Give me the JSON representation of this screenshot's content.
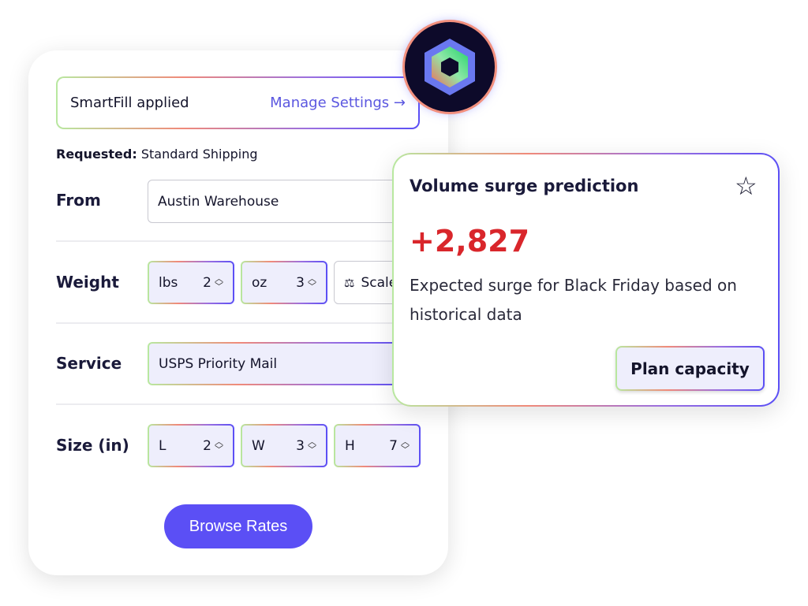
{
  "banner": {
    "status": "SmartFill applied",
    "link": "Manage Settings →"
  },
  "requested": {
    "label": "Requested:",
    "value": "Standard Shipping"
  },
  "form": {
    "from": {
      "label": "From",
      "value": "Austin Warehouse"
    },
    "weight": {
      "label": "Weight",
      "lbs": {
        "unit": "lbs",
        "value": "2"
      },
      "oz": {
        "unit": "oz",
        "value": "3"
      },
      "scale": "Scale"
    },
    "service": {
      "label": "Service",
      "value": "USPS Priority Mail"
    },
    "size": {
      "label": "Size (in)",
      "l": {
        "unit": "L",
        "value": "2"
      },
      "w": {
        "unit": "W",
        "value": "3"
      },
      "h": {
        "unit": "H",
        "value": "7"
      }
    }
  },
  "browse_button": "Browse Rates",
  "popup": {
    "title": "Volume surge prediction",
    "value": "+2,827",
    "description": "Expected surge for Black Friday based on historical data",
    "button": "Plan capacity"
  },
  "colors": {
    "accent": "#5b4ff5",
    "alert": "#d9262b"
  },
  "icons": {
    "logo": "hexagon-logo-icon",
    "star": "star-icon",
    "scale": "scale-icon",
    "arrow": "arrow-right-icon",
    "spinner": "chevron-up-down-icon"
  }
}
